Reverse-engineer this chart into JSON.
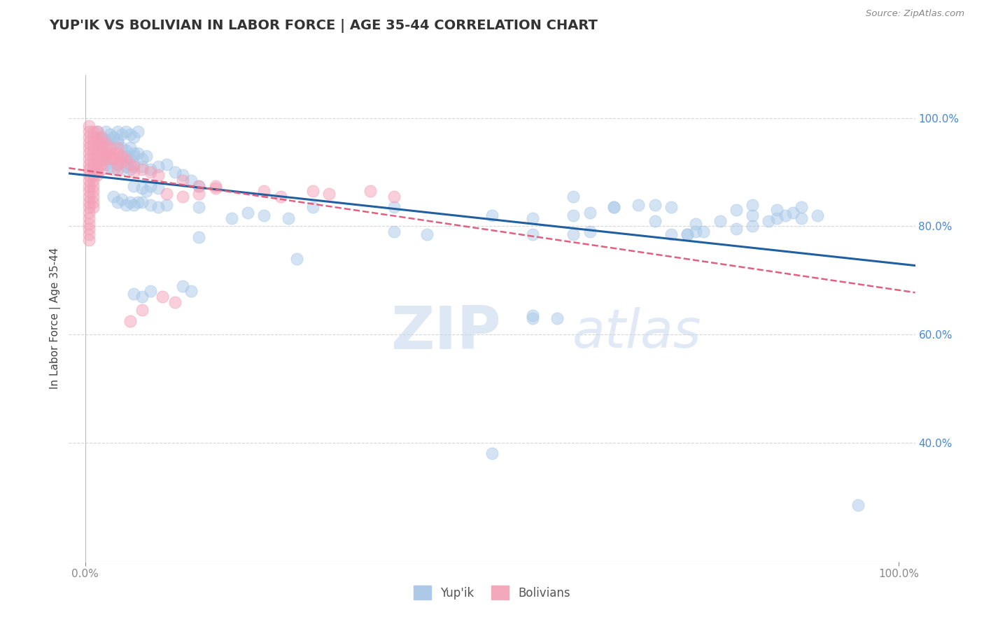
{
  "title": "YUP'IK VS BOLIVIAN IN LABOR FORCE | AGE 35-44 CORRELATION CHART",
  "source_text": "Source: ZipAtlas.com",
  "ylabel": "In Labor Force | Age 35-44",
  "xlim": [
    -0.02,
    1.02
  ],
  "ylim": [
    0.18,
    1.08
  ],
  "watermark": "ZIPatlas",
  "blue_color": "#a8c8e8",
  "pink_color": "#f4a0b8",
  "blue_line_color": "#2060a0",
  "pink_line_color": "#e06080",
  "grid_color": "#cccccc",
  "right_tick_color": "#4488dd",
  "blue_scatter": [
    [
      0.015,
      0.975
    ],
    [
      0.02,
      0.965
    ],
    [
      0.025,
      0.975
    ],
    [
      0.03,
      0.97
    ],
    [
      0.025,
      0.96
    ],
    [
      0.03,
      0.96
    ],
    [
      0.035,
      0.965
    ],
    [
      0.04,
      0.975
    ],
    [
      0.04,
      0.96
    ],
    [
      0.045,
      0.97
    ],
    [
      0.05,
      0.975
    ],
    [
      0.055,
      0.97
    ],
    [
      0.06,
      0.965
    ],
    [
      0.065,
      0.975
    ],
    [
      0.04,
      0.955
    ],
    [
      0.045,
      0.945
    ],
    [
      0.05,
      0.94
    ],
    [
      0.055,
      0.945
    ],
    [
      0.06,
      0.935
    ],
    [
      0.05,
      0.93
    ],
    [
      0.055,
      0.925
    ],
    [
      0.06,
      0.93
    ],
    [
      0.065,
      0.935
    ],
    [
      0.07,
      0.925
    ],
    [
      0.075,
      0.93
    ],
    [
      0.025,
      0.915
    ],
    [
      0.03,
      0.91
    ],
    [
      0.035,
      0.905
    ],
    [
      0.04,
      0.915
    ],
    [
      0.045,
      0.905
    ],
    [
      0.05,
      0.91
    ],
    [
      0.055,
      0.905
    ],
    [
      0.06,
      0.915
    ],
    [
      0.07,
      0.91
    ],
    [
      0.08,
      0.905
    ],
    [
      0.09,
      0.91
    ],
    [
      0.1,
      0.915
    ],
    [
      0.11,
      0.9
    ],
    [
      0.12,
      0.895
    ],
    [
      0.13,
      0.885
    ],
    [
      0.14,
      0.875
    ],
    [
      0.06,
      0.875
    ],
    [
      0.07,
      0.87
    ],
    [
      0.075,
      0.865
    ],
    [
      0.08,
      0.875
    ],
    [
      0.09,
      0.87
    ],
    [
      0.035,
      0.855
    ],
    [
      0.04,
      0.845
    ],
    [
      0.045,
      0.85
    ],
    [
      0.05,
      0.84
    ],
    [
      0.055,
      0.845
    ],
    [
      0.06,
      0.84
    ],
    [
      0.065,
      0.845
    ],
    [
      0.07,
      0.845
    ],
    [
      0.08,
      0.84
    ],
    [
      0.09,
      0.835
    ],
    [
      0.1,
      0.84
    ],
    [
      0.14,
      0.835
    ],
    [
      0.2,
      0.825
    ],
    [
      0.28,
      0.835
    ],
    [
      0.38,
      0.835
    ],
    [
      0.6,
      0.855
    ],
    [
      0.65,
      0.835
    ],
    [
      0.7,
      0.84
    ],
    [
      0.6,
      0.82
    ],
    [
      0.65,
      0.835
    ],
    [
      0.62,
      0.825
    ],
    [
      0.68,
      0.84
    ],
    [
      0.72,
      0.835
    ],
    [
      0.8,
      0.83
    ],
    [
      0.82,
      0.84
    ],
    [
      0.85,
      0.83
    ],
    [
      0.87,
      0.825
    ],
    [
      0.88,
      0.835
    ],
    [
      0.9,
      0.82
    ],
    [
      0.82,
      0.82
    ],
    [
      0.84,
      0.81
    ],
    [
      0.85,
      0.815
    ],
    [
      0.86,
      0.82
    ],
    [
      0.88,
      0.815
    ],
    [
      0.7,
      0.81
    ],
    [
      0.75,
      0.805
    ],
    [
      0.78,
      0.81
    ],
    [
      0.5,
      0.82
    ],
    [
      0.55,
      0.815
    ],
    [
      0.25,
      0.815
    ],
    [
      0.22,
      0.82
    ],
    [
      0.18,
      0.815
    ],
    [
      0.75,
      0.79
    ],
    [
      0.8,
      0.795
    ],
    [
      0.82,
      0.8
    ],
    [
      0.74,
      0.785
    ],
    [
      0.76,
      0.79
    ],
    [
      0.6,
      0.785
    ],
    [
      0.62,
      0.79
    ],
    [
      0.55,
      0.785
    ],
    [
      0.42,
      0.785
    ],
    [
      0.38,
      0.79
    ],
    [
      0.72,
      0.785
    ],
    [
      0.74,
      0.785
    ],
    [
      0.14,
      0.78
    ],
    [
      0.26,
      0.74
    ],
    [
      0.12,
      0.69
    ],
    [
      0.13,
      0.68
    ],
    [
      0.08,
      0.68
    ],
    [
      0.07,
      0.67
    ],
    [
      0.06,
      0.675
    ],
    [
      0.55,
      0.63
    ],
    [
      0.58,
      0.63
    ],
    [
      0.55,
      0.635
    ],
    [
      0.5,
      0.38
    ],
    [
      0.95,
      0.285
    ]
  ],
  "pink_scatter": [
    [
      0.005,
      0.985
    ],
    [
      0.005,
      0.975
    ],
    [
      0.005,
      0.965
    ],
    [
      0.005,
      0.955
    ],
    [
      0.005,
      0.945
    ],
    [
      0.005,
      0.935
    ],
    [
      0.005,
      0.925
    ],
    [
      0.005,
      0.915
    ],
    [
      0.005,
      0.905
    ],
    [
      0.005,
      0.895
    ],
    [
      0.005,
      0.885
    ],
    [
      0.005,
      0.875
    ],
    [
      0.005,
      0.865
    ],
    [
      0.005,
      0.855
    ],
    [
      0.005,
      0.845
    ],
    [
      0.005,
      0.835
    ],
    [
      0.005,
      0.825
    ],
    [
      0.005,
      0.815
    ],
    [
      0.005,
      0.805
    ],
    [
      0.005,
      0.795
    ],
    [
      0.005,
      0.785
    ],
    [
      0.005,
      0.775
    ],
    [
      0.01,
      0.975
    ],
    [
      0.01,
      0.965
    ],
    [
      0.01,
      0.955
    ],
    [
      0.01,
      0.945
    ],
    [
      0.01,
      0.935
    ],
    [
      0.01,
      0.925
    ],
    [
      0.01,
      0.915
    ],
    [
      0.01,
      0.905
    ],
    [
      0.01,
      0.895
    ],
    [
      0.01,
      0.885
    ],
    [
      0.01,
      0.875
    ],
    [
      0.01,
      0.865
    ],
    [
      0.01,
      0.855
    ],
    [
      0.01,
      0.845
    ],
    [
      0.01,
      0.835
    ],
    [
      0.015,
      0.975
    ],
    [
      0.015,
      0.965
    ],
    [
      0.015,
      0.955
    ],
    [
      0.015,
      0.945
    ],
    [
      0.015,
      0.935
    ],
    [
      0.015,
      0.925
    ],
    [
      0.015,
      0.915
    ],
    [
      0.015,
      0.905
    ],
    [
      0.015,
      0.895
    ],
    [
      0.02,
      0.965
    ],
    [
      0.02,
      0.955
    ],
    [
      0.02,
      0.945
    ],
    [
      0.02,
      0.935
    ],
    [
      0.02,
      0.925
    ],
    [
      0.02,
      0.915
    ],
    [
      0.02,
      0.905
    ],
    [
      0.025,
      0.955
    ],
    [
      0.025,
      0.945
    ],
    [
      0.025,
      0.935
    ],
    [
      0.025,
      0.925
    ],
    [
      0.03,
      0.945
    ],
    [
      0.03,
      0.935
    ],
    [
      0.03,
      0.925
    ],
    [
      0.035,
      0.935
    ],
    [
      0.035,
      0.925
    ],
    [
      0.04,
      0.945
    ],
    [
      0.04,
      0.935
    ],
    [
      0.04,
      0.925
    ],
    [
      0.04,
      0.915
    ],
    [
      0.04,
      0.905
    ],
    [
      0.045,
      0.93
    ],
    [
      0.045,
      0.92
    ],
    [
      0.05,
      0.925
    ],
    [
      0.055,
      0.915
    ],
    [
      0.06,
      0.91
    ],
    [
      0.06,
      0.9
    ],
    [
      0.07,
      0.905
    ],
    [
      0.08,
      0.9
    ],
    [
      0.09,
      0.895
    ],
    [
      0.12,
      0.885
    ],
    [
      0.14,
      0.875
    ],
    [
      0.16,
      0.87
    ],
    [
      0.22,
      0.865
    ],
    [
      0.1,
      0.86
    ],
    [
      0.12,
      0.855
    ],
    [
      0.24,
      0.855
    ],
    [
      0.35,
      0.865
    ],
    [
      0.38,
      0.855
    ],
    [
      0.14,
      0.86
    ],
    [
      0.16,
      0.875
    ],
    [
      0.3,
      0.86
    ],
    [
      0.28,
      0.865
    ],
    [
      0.095,
      0.67
    ],
    [
      0.11,
      0.66
    ],
    [
      0.07,
      0.645
    ],
    [
      0.055,
      0.625
    ]
  ],
  "background_color": "#ffffff"
}
